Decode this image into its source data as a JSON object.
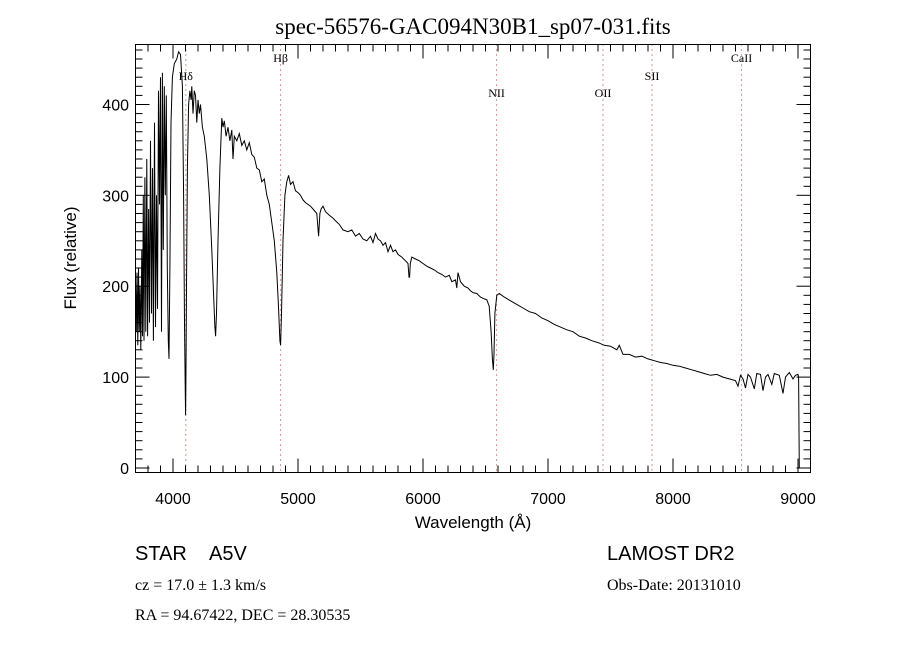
{
  "chart_data": {
    "type": "line",
    "title": "spec-56576-GAC094N30B1_sp07-031.fits",
    "xlabel": "Wavelength (Å)",
    "ylabel": "Flux (relative)",
    "xlim": [
      3700,
      9100
    ],
    "ylim": [
      -5,
      466
    ],
    "xticks": [
      "4000",
      "5000",
      "6000",
      "7000",
      "8000",
      "9000"
    ],
    "yticks": [
      "0",
      "100",
      "200",
      "300",
      "400"
    ],
    "grid": false,
    "line_markers": [
      {
        "label": "Hδ",
        "wavelength": 4102
      },
      {
        "label": "Hβ",
        "wavelength": 4861
      },
      {
        "label": "NII",
        "wavelength": 6589
      },
      {
        "label": "OII",
        "wavelength": 7440
      },
      {
        "label": "SII",
        "wavelength": 7832
      },
      {
        "label": "CaII",
        "wavelength": 8549
      }
    ],
    "marker_color": "#a0302a",
    "series": [
      {
        "name": "spectrum",
        "points": [
          [
            3700,
            205
          ],
          [
            3706,
            150
          ],
          [
            3712,
            215
          ],
          [
            3718,
            135
          ],
          [
            3724,
            220
          ],
          [
            3730,
            150
          ],
          [
            3736,
            200
          ],
          [
            3742,
            130
          ],
          [
            3750,
            240
          ],
          [
            3756,
            145
          ],
          [
            3762,
            300
          ],
          [
            3768,
            140
          ],
          [
            3775,
            320
          ],
          [
            3782,
            150
          ],
          [
            3790,
            340
          ],
          [
            3797,
            145
          ],
          [
            3805,
            285
          ],
          [
            3812,
            160
          ],
          [
            3820,
            360
          ],
          [
            3828,
            170
          ],
          [
            3836,
            330
          ],
          [
            3843,
            140
          ],
          [
            3852,
            380
          ],
          [
            3860,
            155
          ],
          [
            3868,
            300
          ],
          [
            3876,
            175
          ],
          [
            3884,
            415
          ],
          [
            3892,
            290
          ],
          [
            3900,
            430
          ],
          [
            3908,
            150
          ],
          [
            3915,
            435
          ],
          [
            3922,
            240
          ],
          [
            3930,
            420
          ],
          [
            3938,
            300
          ],
          [
            3946,
            410
          ],
          [
            3954,
            220
          ],
          [
            3962,
            140
          ],
          [
            3968,
            120
          ],
          [
            3975,
            220
          ],
          [
            3984,
            380
          ],
          [
            3995,
            430
          ],
          [
            4010,
            445
          ],
          [
            4030,
            450
          ],
          [
            4045,
            458
          ],
          [
            4060,
            455
          ],
          [
            4075,
            420
          ],
          [
            4085,
            300
          ],
          [
            4092,
            160
          ],
          [
            4098,
            80
          ],
          [
            4101,
            58
          ],
          [
            4104,
            110
          ],
          [
            4108,
            200
          ],
          [
            4115,
            330
          ],
          [
            4125,
            400
          ],
          [
            4135,
            415
          ],
          [
            4145,
            405
          ],
          [
            4150,
            420
          ],
          [
            4160,
            390
          ],
          [
            4170,
            415
          ],
          [
            4180,
            410
          ],
          [
            4190,
            380
          ],
          [
            4200,
            405
          ],
          [
            4210,
            390
          ],
          [
            4220,
            400
          ],
          [
            4235,
            375
          ],
          [
            4250,
            365
          ],
          [
            4270,
            340
          ],
          [
            4290,
            300
          ],
          [
            4310,
            240
          ],
          [
            4325,
            190
          ],
          [
            4335,
            155
          ],
          [
            4341,
            145
          ],
          [
            4348,
            170
          ],
          [
            4360,
            250
          ],
          [
            4375,
            330
          ],
          [
            4390,
            385
          ],
          [
            4400,
            375
          ],
          [
            4410,
            382
          ],
          [
            4425,
            365
          ],
          [
            4440,
            375
          ],
          [
            4455,
            360
          ],
          [
            4470,
            372
          ],
          [
            4480,
            340
          ],
          [
            4490,
            365
          ],
          [
            4510,
            360
          ],
          [
            4530,
            368
          ],
          [
            4550,
            355
          ],
          [
            4570,
            360
          ],
          [
            4590,
            350
          ],
          [
            4610,
            358
          ],
          [
            4630,
            345
          ],
          [
            4650,
            342
          ],
          [
            4670,
            330
          ],
          [
            4690,
            328
          ],
          [
            4710,
            315
          ],
          [
            4730,
            318
          ],
          [
            4750,
            300
          ],
          [
            4770,
            290
          ],
          [
            4790,
            270
          ],
          [
            4810,
            250
          ],
          [
            4830,
            215
          ],
          [
            4845,
            175
          ],
          [
            4855,
            140
          ],
          [
            4861,
            135
          ],
          [
            4868,
            170
          ],
          [
            4880,
            250
          ],
          [
            4895,
            300
          ],
          [
            4910,
            315
          ],
          [
            4925,
            322
          ],
          [
            4940,
            312
          ],
          [
            4960,
            315
          ],
          [
            4980,
            305
          ],
          [
            5000,
            303
          ],
          [
            5020,
            300
          ],
          [
            5040,
            295
          ],
          [
            5060,
            292
          ],
          [
            5080,
            290
          ],
          [
            5100,
            288
          ],
          [
            5120,
            285
          ],
          [
            5150,
            280
          ],
          [
            5165,
            255
          ],
          [
            5175,
            280
          ],
          [
            5185,
            285
          ],
          [
            5200,
            288
          ],
          [
            5220,
            282
          ],
          [
            5250,
            278
          ],
          [
            5280,
            275
          ],
          [
            5300,
            272
          ],
          [
            5330,
            268
          ],
          [
            5360,
            262
          ],
          [
            5400,
            260
          ],
          [
            5430,
            262
          ],
          [
            5460,
            255
          ],
          [
            5490,
            258
          ],
          [
            5520,
            252
          ],
          [
            5550,
            250
          ],
          [
            5580,
            255
          ],
          [
            5600,
            248
          ],
          [
            5620,
            258
          ],
          [
            5640,
            252
          ],
          [
            5660,
            250
          ],
          [
            5680,
            245
          ],
          [
            5700,
            248
          ],
          [
            5720,
            238
          ],
          [
            5740,
            245
          ],
          [
            5760,
            238
          ],
          [
            5780,
            240
          ],
          [
            5800,
            235
          ],
          [
            5830,
            232
          ],
          [
            5860,
            228
          ],
          [
            5880,
            225
          ],
          [
            5888,
            210
          ],
          [
            5893,
            210
          ],
          [
            5898,
            225
          ],
          [
            5910,
            232
          ],
          [
            5940,
            230
          ],
          [
            5970,
            228
          ],
          [
            6000,
            225
          ],
          [
            6030,
            222
          ],
          [
            6060,
            220
          ],
          [
            6090,
            218
          ],
          [
            6120,
            215
          ],
          [
            6150,
            213
          ],
          [
            6180,
            210
          ],
          [
            6210,
            212
          ],
          [
            6230,
            205
          ],
          [
            6260,
            207
          ],
          [
            6270,
            198
          ],
          [
            6280,
            215
          ],
          [
            6300,
            205
          ],
          [
            6330,
            200
          ],
          [
            6360,
            198
          ],
          [
            6380,
            195
          ],
          [
            6400,
            193
          ],
          [
            6430,
            192
          ],
          [
            6460,
            188
          ],
          [
            6490,
            186
          ],
          [
            6510,
            185
          ],
          [
            6530,
            178
          ],
          [
            6545,
            150
          ],
          [
            6555,
            120
          ],
          [
            6562,
            108
          ],
          [
            6568,
            125
          ],
          [
            6575,
            170
          ],
          [
            6590,
            190
          ],
          [
            6610,
            192
          ],
          [
            6630,
            190
          ],
          [
            6650,
            188
          ],
          [
            6700,
            184
          ],
          [
            6750,
            180
          ],
          [
            6800,
            176
          ],
          [
            6850,
            172
          ],
          [
            6900,
            170
          ],
          [
            6950,
            165
          ],
          [
            7000,
            162
          ],
          [
            7050,
            158
          ],
          [
            7100,
            155
          ],
          [
            7150,
            152
          ],
          [
            7200,
            150
          ],
          [
            7250,
            145
          ],
          [
            7300,
            143
          ],
          [
            7350,
            140
          ],
          [
            7400,
            138
          ],
          [
            7450,
            135
          ],
          [
            7500,
            134
          ],
          [
            7550,
            130
          ],
          [
            7570,
            135
          ],
          [
            7600,
            125
          ],
          [
            7650,
            125
          ],
          [
            7700,
            122
          ],
          [
            7750,
            123
          ],
          [
            7800,
            120
          ],
          [
            7850,
            118
          ],
          [
            7900,
            116
          ],
          [
            7950,
            115
          ],
          [
            8000,
            113
          ],
          [
            8050,
            112
          ],
          [
            8100,
            110
          ],
          [
            8150,
            108
          ],
          [
            8200,
            106
          ],
          [
            8250,
            104
          ],
          [
            8300,
            102
          ],
          [
            8350,
            103
          ],
          [
            8400,
            100
          ],
          [
            8450,
            98
          ],
          [
            8500,
            96
          ],
          [
            8520,
            90
          ],
          [
            8540,
            102
          ],
          [
            8560,
            98
          ],
          [
            8580,
            88
          ],
          [
            8600,
            103
          ],
          [
            8620,
            100
          ],
          [
            8650,
            87
          ],
          [
            8670,
            104
          ],
          [
            8700,
            103
          ],
          [
            8720,
            85
          ],
          [
            8740,
            100
          ],
          [
            8760,
            103
          ],
          [
            8790,
            92
          ],
          [
            8810,
            104
          ],
          [
            8850,
            102
          ],
          [
            8880,
            82
          ],
          [
            8900,
            100
          ],
          [
            8930,
            105
          ],
          [
            8960,
            98
          ],
          [
            8980,
            102
          ],
          [
            9000,
            103
          ],
          [
            9005,
            100
          ],
          [
            9010,
            0
          ]
        ]
      }
    ]
  },
  "info": {
    "object_class": "STAR",
    "subclass": "A5V",
    "survey": "LAMOST DR2",
    "cz": "cz = 17.0 ± 1.3 km/s",
    "obs_date": "Obs-Date: 20131010",
    "coords": "RA =  94.67422, DEC =  28.30535"
  }
}
